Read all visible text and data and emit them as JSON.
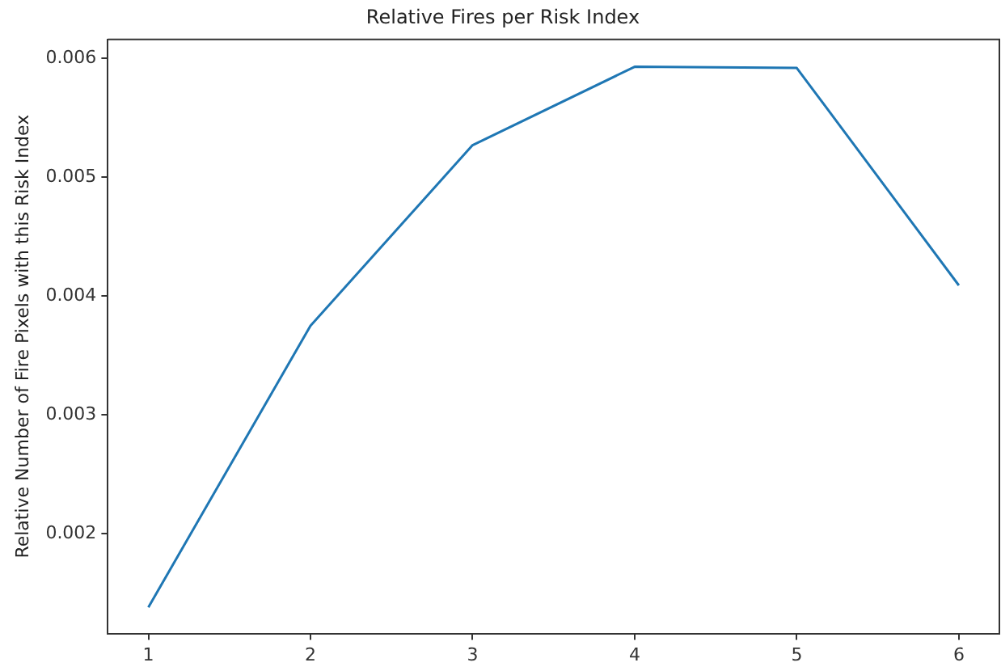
{
  "chart_data": {
    "type": "line",
    "title": "Relative Fires per Risk Index",
    "ylabel": "Relative Number of Fire Pixels with this Risk Index",
    "x": [
      1,
      2,
      3,
      4,
      5,
      6
    ],
    "series": [
      {
        "color": "#1f77b4",
        "values": [
          0.00138,
          0.00375,
          0.00527,
          0.00593,
          0.00592,
          0.00409
        ]
      }
    ],
    "xlim": [
      0.75,
      6.25
    ],
    "xticks": [
      1,
      2,
      3,
      4,
      5,
      6
    ],
    "ylim": [
      0.00116,
      0.00616
    ],
    "yticks": [
      0.002,
      0.003,
      0.004,
      0.005,
      0.006
    ],
    "grid": false,
    "legend": false,
    "marker": "none",
    "line_style": "solid"
  }
}
